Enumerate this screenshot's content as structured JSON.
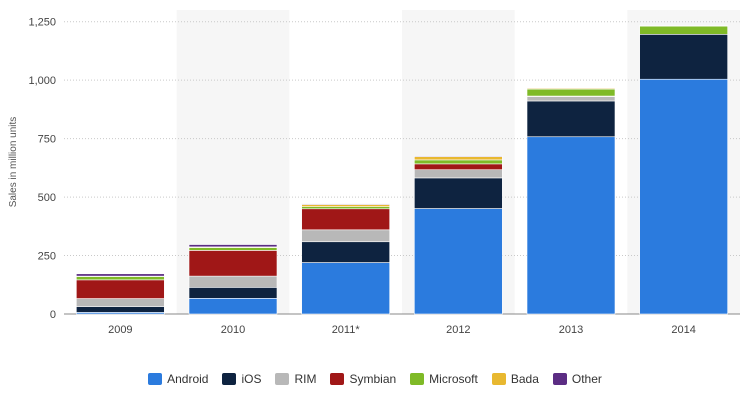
{
  "chart_data": {
    "type": "bar",
    "stacked": true,
    "categories": [
      "2009",
      "2010",
      "2011*",
      "2012",
      "2013",
      "2014"
    ],
    "ylabel": "Sales in million units",
    "ylim": [
      0,
      1300
    ],
    "yticks": [
      0,
      250,
      500,
      750,
      1000,
      1250
    ],
    "ytick_labels": [
      "0",
      "250",
      "500",
      "750",
      "1,000",
      "1,250"
    ],
    "grid": true,
    "legend_position": "bottom",
    "series": [
      {
        "name": "Android",
        "color": "#2b7bde",
        "values": [
          7,
          67,
          220,
          451,
          758,
          1004
        ]
      },
      {
        "name": "iOS",
        "color": "#0e2340",
        "values": [
          25,
          47,
          89,
          131,
          153,
          192
        ]
      },
      {
        "name": "RIM",
        "color": "#b8b8b8",
        "values": [
          34,
          48,
          51,
          35,
          19,
          0
        ]
      },
      {
        "name": "Symbian",
        "color": "#a01717",
        "values": [
          80,
          110,
          90,
          25,
          2,
          0
        ]
      },
      {
        "name": "Microsoft",
        "color": "#7fba27",
        "values": [
          15,
          12,
          9,
          17,
          30,
          35
        ]
      },
      {
        "name": "Bada",
        "color": "#e8b830",
        "values": [
          1,
          3,
          9,
          14,
          4,
          2
        ]
      },
      {
        "name": "Other",
        "color": "#5b2c83",
        "values": [
          10,
          10,
          3,
          3,
          2,
          1
        ]
      }
    ]
  }
}
